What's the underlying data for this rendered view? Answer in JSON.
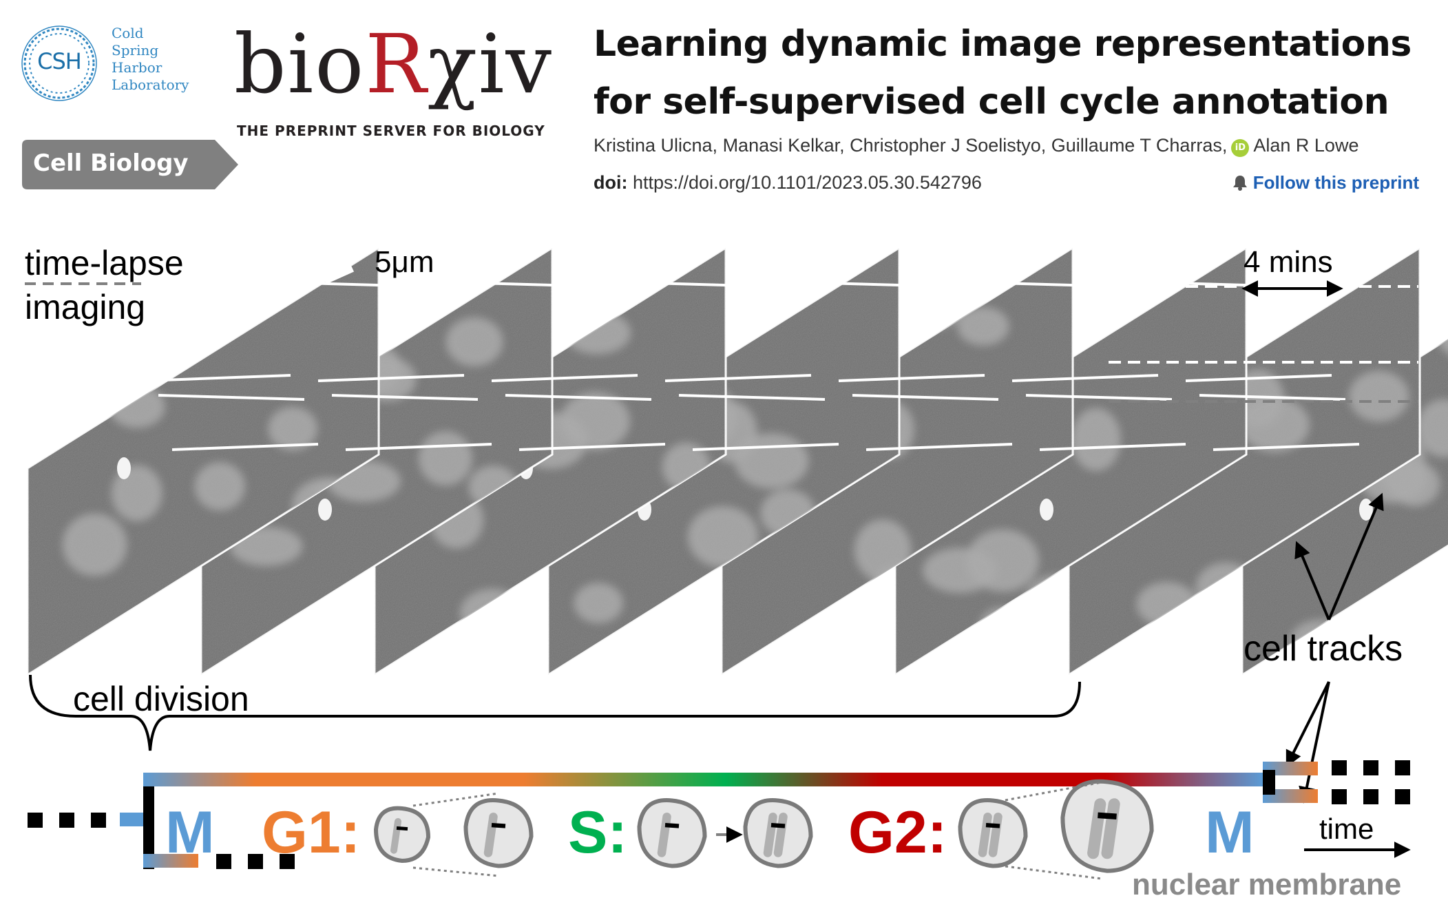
{
  "header": {
    "csh_logo": {
      "letters": "CSH",
      "name_lines": [
        "Cold",
        "Spring",
        "Harbor",
        "Laboratory"
      ],
      "icon": "dna-ring-icon"
    },
    "biorxiv_logo": {
      "word_prefix": "bio",
      "word_r": "R",
      "word_suffix": "χiv",
      "tagline": "THE PREPRINT SERVER FOR BIOLOGY"
    },
    "category": "Cell Biology",
    "title": "Learning dynamic image representations for self-supervised cell cycle annotation",
    "authors_before_orcid": "Kristina Ulicna, Manasi Kelkar, Christopher J Soelistyo, Guillaume T Charras,",
    "orcid_label": "iD",
    "authors_after_orcid": "Alan R Lowe",
    "doi_label": "doi:",
    "doi_value": "https://doi.org/10.1101/2023.05.30.542796",
    "follow_label": "Follow this preprint",
    "colors": {
      "biorxiv_red": "#b41e26",
      "csh_blue": "#2f86c1",
      "link_blue": "#1d5fb4",
      "badge_gray": "#808080",
      "orcid_green": "#a6ce39"
    }
  },
  "figure": {
    "label_timelapse": "time-lapse imaging",
    "label_scale": "5μm",
    "label_interval": "4 mins",
    "label_tracks": "cell tracks",
    "label_division": "cell division",
    "phases": {
      "m_start": "M",
      "g1": "G1:",
      "s": "S:",
      "g2": "G2:",
      "m_end": "M"
    },
    "label_time": "time",
    "label_membrane": "nuclear membrane",
    "frame_count": 8,
    "colors": {
      "m": "#5b9bd5",
      "g1": "#ed7d31",
      "s": "#00b050",
      "g2": "#c00000",
      "membrane": "#8a8a8a"
    }
  }
}
